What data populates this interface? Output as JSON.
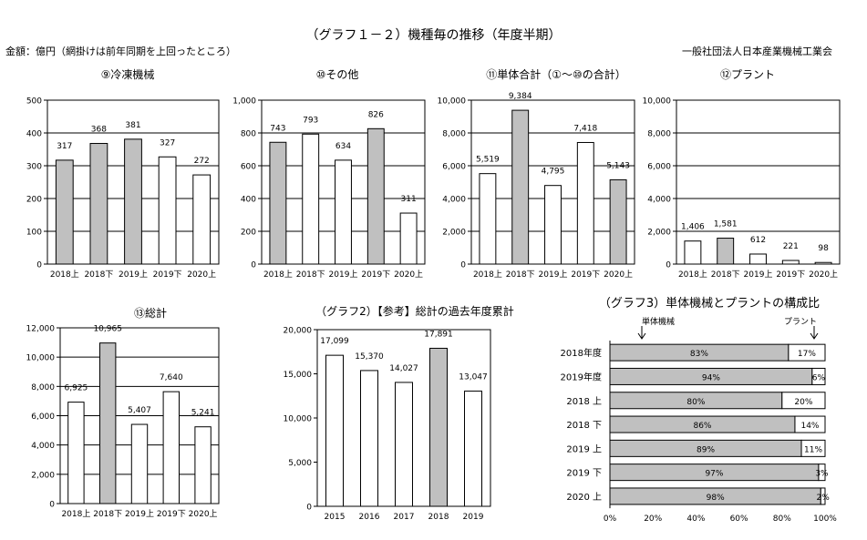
{
  "header": {
    "title": "（グラフ１－２）機種毎の推移（年度半期）",
    "unit_note": "金額：億円（網掛けは前年同期を上回ったところ）",
    "organization": "一般社団法人日本産業機械工業会"
  },
  "colors": {
    "shaded": "#c0c0c0",
    "plain": "#ffffff",
    "stroke": "#000000",
    "grid": "#000000"
  },
  "chart_data": [
    {
      "type": "bar",
      "title": "⑨冷凍機械",
      "categories": [
        "2018上",
        "2018下",
        "2019上",
        "2019下",
        "2020上"
      ],
      "values": [
        317,
        368,
        381,
        327,
        272
      ],
      "value_labels": [
        "317",
        "368",
        "381",
        "327",
        "272"
      ],
      "shaded": [
        true,
        true,
        true,
        false,
        false
      ],
      "ylim": [
        0,
        500
      ],
      "yticks": [
        "0",
        "100",
        "200",
        "300",
        "400",
        "500"
      ],
      "grid": true
    },
    {
      "type": "bar",
      "title": "⑩その他",
      "categories": [
        "2018上",
        "2018下",
        "2019上",
        "2019下",
        "2020上"
      ],
      "values": [
        743,
        793,
        634,
        826,
        311
      ],
      "value_labels": [
        "743",
        "793",
        "634",
        "826",
        "311"
      ],
      "shaded": [
        true,
        false,
        false,
        true,
        false
      ],
      "ylim": [
        0,
        1000
      ],
      "yticks": [
        "0",
        "200",
        "400",
        "600",
        "800",
        "1,000"
      ],
      "grid": true
    },
    {
      "type": "bar",
      "title": "⑪単体合計（①～⑩の合計）",
      "categories": [
        "2018上",
        "2018下",
        "2019上",
        "2019下",
        "2020上"
      ],
      "values": [
        5519,
        9384,
        4795,
        7418,
        5143
      ],
      "value_labels": [
        "5,519",
        "9,384",
        "4,795",
        "7,418",
        "5,143"
      ],
      "shaded": [
        false,
        true,
        false,
        false,
        true
      ],
      "ylim": [
        0,
        10000
      ],
      "yticks": [
        "0",
        "2,000",
        "4,000",
        "6,000",
        "8,000",
        "10,000"
      ],
      "grid": true
    },
    {
      "type": "bar",
      "title": "⑫プラント",
      "categories": [
        "2018上",
        "2018下",
        "2019上",
        "2019下",
        "2020上"
      ],
      "values": [
        1406,
        1581,
        612,
        221,
        98
      ],
      "value_labels": [
        "1,406",
        "1,581",
        "612",
        "221",
        "98"
      ],
      "shaded": [
        false,
        true,
        false,
        false,
        false
      ],
      "ylim": [
        0,
        10000
      ],
      "yticks": [
        "0",
        "2,000",
        "4,000",
        "6,000",
        "8,000",
        "10,000"
      ],
      "grid": true
    },
    {
      "type": "bar",
      "title": "⑬総計",
      "categories": [
        "2018上",
        "2018下",
        "2019上",
        "2019下",
        "2020上"
      ],
      "values": [
        6925,
        10965,
        5407,
        7640,
        5241
      ],
      "value_labels": [
        "6,925",
        "10,965",
        "5,407",
        "7,640",
        "5,241"
      ],
      "shaded": [
        false,
        true,
        false,
        false,
        false
      ],
      "ylim": [
        0,
        12000
      ],
      "yticks": [
        "0",
        "2,000",
        "4,000",
        "6,000",
        "8,000",
        "10,000",
        "12,000"
      ],
      "grid": true
    },
    {
      "type": "bar",
      "title": "（グラフ2）【参考】総計の過去年度累計",
      "categories": [
        "2015",
        "2016",
        "2017",
        "2018",
        "2019"
      ],
      "values": [
        17099,
        15370,
        14027,
        17891,
        13047
      ],
      "value_labels": [
        "17,099",
        "15,370",
        "14,027",
        "17,891",
        "13,047"
      ],
      "shaded": [
        false,
        false,
        false,
        true,
        false
      ],
      "ylim": [
        0,
        20000
      ],
      "yticks": [
        "0",
        "5,000",
        "10,000",
        "15,000",
        "20,000"
      ],
      "grid": false
    },
    {
      "type": "bar",
      "orientation": "horizontal-stacked",
      "title": "（グラフ3）単体機械とプラントの構成比",
      "annotations": [
        "単体機械",
        "プラント"
      ],
      "categories": [
        "2018年度",
        "2019年度",
        "2018 上",
        "2018 下",
        "2019 上",
        "2019 下",
        "2020 上"
      ],
      "series": [
        {
          "name": "単体機械",
          "values": [
            83,
            94,
            80,
            86,
            89,
            97,
            98
          ],
          "labels": [
            "83%",
            "94%",
            "80%",
            "86%",
            "89%",
            "97%",
            "98%"
          ]
        },
        {
          "name": "プラント",
          "values": [
            17,
            6,
            20,
            14,
            11,
            3,
            2
          ],
          "labels": [
            "17%",
            "6%",
            "20%",
            "14%",
            "11%",
            "3%",
            "2%"
          ]
        }
      ],
      "xlim": [
        0,
        100
      ],
      "xticks": [
        "0%",
        "20%",
        "40%",
        "60%",
        "80%",
        "100%"
      ]
    }
  ]
}
